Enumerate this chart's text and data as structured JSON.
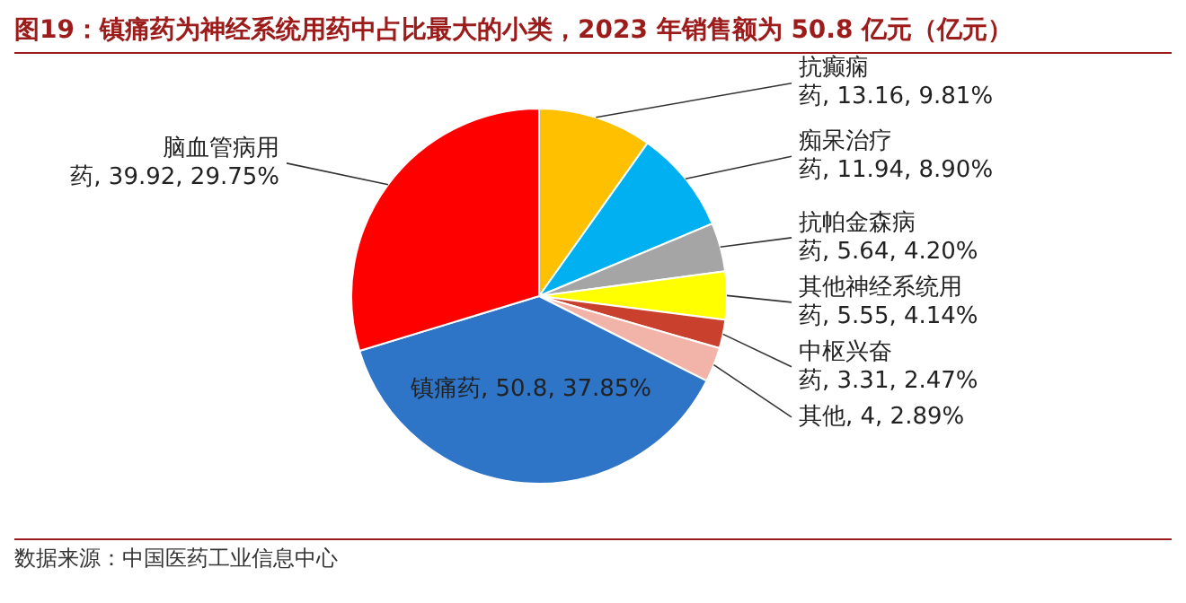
{
  "chart_data": {
    "type": "pie",
    "title": "图19：镇痛药为神经系统用药中占比最大的小类，2023 年销售额为 50.8 亿元（亿元）",
    "categories": [
      "抗癫痫药",
      "痴呆治疗药",
      "抗帕金森病药",
      "其他神经系统用药",
      "中枢兴奋药",
      "其他",
      "镇痛药",
      "脑血管病用药"
    ],
    "values": [
      13.16,
      11.94,
      5.64,
      5.55,
      3.31,
      4,
      50.8,
      39.92
    ],
    "value_labels": [
      "13.16, 9.81%",
      "11.94, 8.90%",
      "5.64, 4.20%",
      "5.55, 4.14%",
      "3.31, 2.47%",
      "4, 2.89%",
      "50.8, 37.85%",
      "39.92, 29.75%"
    ],
    "colors": [
      "#ffc000",
      "#00b0f0",
      "#a5a5a5",
      "#ffff00",
      "#c9402c",
      "#f2b3a8",
      "#2e75c8",
      "#ff0000"
    ],
    "legend": false,
    "annotations": [
      "数据来源：中国医药工业信息中心"
    ]
  }
}
